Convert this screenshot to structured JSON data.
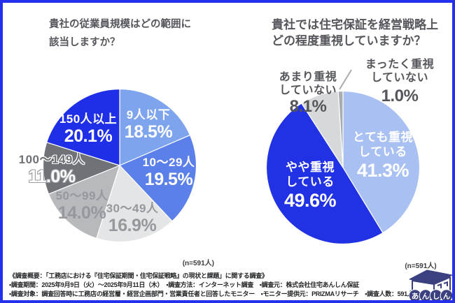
{
  "frame": {
    "border_color": "#2430EC",
    "background": "#ffffff"
  },
  "chart_data": [
    {
      "type": "pie",
      "title": "貴社の従業員規模はどの範囲に該当しますか？",
      "title_lines": [
        "貴社の従業員規模はどの範囲に",
        "該当しますか？"
      ],
      "n_label": "(n=591人)",
      "start_angle_deg": 0,
      "direction": "clockwise",
      "segments": [
        {
          "label": "9人以下",
          "value": 18.5,
          "display": "18.5%",
          "color": "#7EA4EE"
        },
        {
          "label": "10〜29人",
          "value": 19.5,
          "display": "19.5%",
          "color": "#5B80EA"
        },
        {
          "label": "30〜49人",
          "value": 16.9,
          "display": "16.9%",
          "color": "#E4E5E7"
        },
        {
          "label": "50〜99人",
          "value": 14.0,
          "display": "14.0%",
          "color": "#B7B9BC"
        },
        {
          "label": "100〜149人",
          "value": 11.0,
          "display": "11.0%",
          "color": "#6F7277"
        },
        {
          "label": "150人以上",
          "value": 20.1,
          "display": "20.1%",
          "color": "#1F2FE7"
        }
      ]
    },
    {
      "type": "pie",
      "title": "貴社では住宅保証を経営戦略上どの程度重視していますか？",
      "title_lines": [
        "貴社では住宅保証を経営戦略上",
        "どの程度重視していますか？"
      ],
      "n_label": "(n=591人)",
      "start_angle_deg": 0,
      "direction": "clockwise",
      "segments": [
        {
          "label": "とても重視している",
          "label_lines": [
            "とても重視",
            "している"
          ],
          "value": 41.3,
          "display": "41.3%",
          "color": "#A9C0F2"
        },
        {
          "label": "やや重視している",
          "label_lines": [
            "やや重視",
            "している"
          ],
          "value": 49.6,
          "display": "49.6%",
          "color": "#2132E4"
        },
        {
          "label": "あまり重視していない",
          "label_lines": [
            "あまり重視",
            "していない"
          ],
          "value": 8.1,
          "display": "8.1%",
          "color": "#D7D8DA"
        },
        {
          "label": "まったく重視していない",
          "label_lines": [
            "まったく重視",
            "していない"
          ],
          "value": 1.0,
          "display": "1.0%",
          "color": "#A9ACB0"
        }
      ]
    }
  ],
  "footer": {
    "note_lines": [
      "《調査概要：「工務店における『住宅保証期間・住宅保証戦略』の現状と課題」に関する調査》",
      "▪調査期間：2025年9月9日（火）〜2025年9月11日（木）　▪調査方法：インターネット調査　▪調査元：株式会社住宅あんしん保証",
      "▪調査対象：調査回答時に工務店の経営層・経営企画部門・営業責任者と回答したモニター　▪モニター提供元：PRIZMAリサーチ　▪調査人数：591人"
    ]
  },
  "logo": {
    "chars": [
      "あ",
      "ん",
      "し",
      "ん"
    ],
    "color": "#3B4080"
  }
}
